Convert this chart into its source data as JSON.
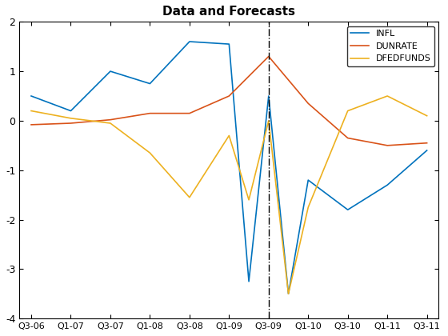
{
  "title": "Data and Forecasts",
  "xlabels": [
    "Q3-06",
    "Q1-07",
    "Q3-07",
    "Q1-08",
    "Q3-08",
    "Q1-09",
    "Q3-09",
    "Q1-10",
    "Q3-10",
    "Q1-11",
    "Q3-11"
  ],
  "ylim": [
    -4,
    2
  ],
  "yticks": [
    -4,
    -3,
    -2,
    -1,
    0,
    1,
    2
  ],
  "vline_x": 6,
  "infl_x": [
    0,
    1,
    2,
    3,
    4,
    5,
    5.5,
    6,
    6.5,
    7,
    8,
    9,
    10
  ],
  "infl_y": [
    0.5,
    0.2,
    1.0,
    0.75,
    1.6,
    1.55,
    -3.25,
    0.5,
    -3.5,
    -1.2,
    -1.8,
    -1.3,
    -0.6
  ],
  "dunrate_x": [
    0,
    1,
    2,
    3,
    4,
    5,
    6,
    7,
    8,
    9,
    10
  ],
  "dunrate_y": [
    -0.08,
    -0.05,
    0.02,
    0.15,
    0.15,
    0.5,
    1.3,
    0.35,
    -0.35,
    -0.5,
    -0.45
  ],
  "dfedfunds_x": [
    0,
    1,
    2,
    3,
    4,
    5,
    5.5,
    6,
    6.5,
    7,
    8,
    9,
    10
  ],
  "dfedfunds_y": [
    0.2,
    0.05,
    -0.05,
    -0.65,
    -1.55,
    -0.3,
    -1.6,
    0.0,
    -3.5,
    -1.75,
    0.2,
    0.5,
    0.1
  ],
  "infl_color": "#0072BD",
  "dunrate_color": "#D95319",
  "dfedfunds_color": "#EDB120",
  "linewidth": 1.2
}
